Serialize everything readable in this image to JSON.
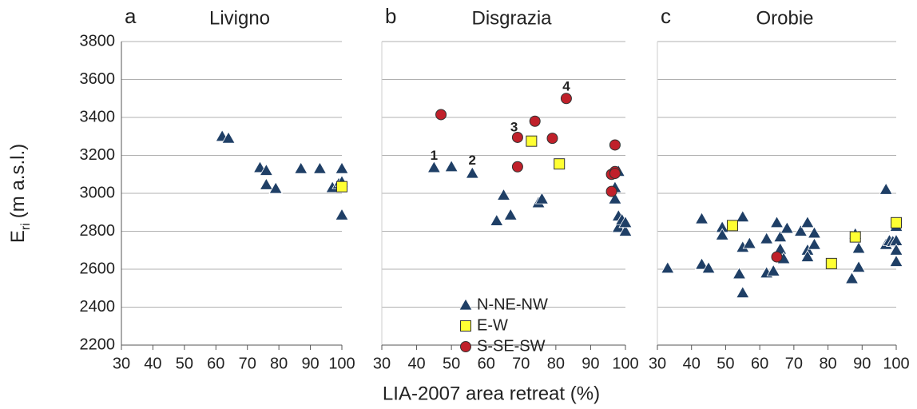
{
  "chart_data": [
    {
      "type": "scatter",
      "letter": "a",
      "title": "Livigno",
      "y_label": "E",
      "y_label_sub": "ri",
      "y_label_unit": "(m a.s.l.)",
      "xlim": [
        30,
        100
      ],
      "xticks": [
        30,
        40,
        50,
        60,
        70,
        80,
        90,
        100
      ],
      "ylim": [
        2200,
        3800
      ],
      "yticks": [
        2200,
        2400,
        2600,
        2800,
        3000,
        3200,
        3400,
        3600,
        3800
      ],
      "ytick_labels": true,
      "grid": true,
      "legend": false,
      "series": [
        {
          "name": "N-NE-NW",
          "marker": "triangle",
          "color": "#1f3f66",
          "x": [
            62,
            64,
            74,
            76,
            76,
            79,
            87,
            93,
            97,
            99,
            100,
            100,
            100
          ],
          "values": [
            3300,
            3290,
            3135,
            3120,
            3045,
            3025,
            3130,
            3130,
            3030,
            3050,
            3130,
            3060,
            2885
          ]
        },
        {
          "name": "E-W",
          "marker": "square",
          "color": "#ffff33",
          "x": [
            100
          ],
          "values": [
            3035
          ]
        }
      ]
    },
    {
      "type": "scatter",
      "letter": "b",
      "title": "Disgrazia",
      "x_label": "LIA-2007 area retreat (%)",
      "xlim": [
        30,
        100
      ],
      "xticks": [
        30,
        40,
        50,
        60,
        70,
        80,
        90,
        100
      ],
      "ylim": [
        2200,
        3800
      ],
      "yticks": [
        2200,
        2400,
        2600,
        2800,
        3000,
        3200,
        3400,
        3600,
        3800
      ],
      "ytick_labels": false,
      "grid": true,
      "legend": true,
      "annotations": [
        {
          "text": "1",
          "x": 45,
          "y": 3195
        },
        {
          "text": "2",
          "x": 56,
          "y": 3170
        },
        {
          "text": "3",
          "x": 68,
          "y": 3345
        },
        {
          "text": "4",
          "x": 83,
          "y": 3560
        }
      ],
      "series": [
        {
          "name": "N-NE-NW",
          "marker": "triangle",
          "color": "#1f3f66",
          "x": [
            45,
            50,
            56,
            63,
            65,
            67,
            75,
            76,
            97,
            97,
            98,
            98,
            99,
            100,
            100,
            98
          ],
          "values": [
            3135,
            3140,
            3105,
            2855,
            2990,
            2885,
            2950,
            2970,
            3030,
            2970,
            2820,
            2880,
            2860,
            2800,
            2845,
            3115
          ]
        },
        {
          "name": "E-W",
          "marker": "square",
          "color": "#ffff33",
          "x": [
            73,
            81
          ],
          "values": [
            3275,
            3155
          ]
        },
        {
          "name": "S-SE-SW",
          "marker": "circle",
          "color": "#c0202a",
          "x": [
            47,
            69,
            69,
            74,
            79,
            83,
            96,
            96,
            97,
            97,
            97
          ],
          "values": [
            3415,
            3295,
            3140,
            3380,
            3290,
            3500,
            3010,
            3100,
            3255,
            3115,
            3105
          ]
        }
      ]
    },
    {
      "type": "scatter",
      "letter": "c",
      "title": "Orobie",
      "xlim": [
        30,
        100
      ],
      "xticks": [
        30,
        40,
        50,
        60,
        70,
        80,
        90,
        100
      ],
      "ylim": [
        2200,
        3800
      ],
      "yticks": [
        2200,
        2400,
        2600,
        2800,
        3000,
        3200,
        3400,
        3600,
        3800
      ],
      "ytick_labels": false,
      "grid": true,
      "legend": false,
      "series": [
        {
          "name": "N-NE-NW",
          "marker": "triangle",
          "color": "#1f3f66",
          "x": [
            33,
            43,
            43,
            45,
            49,
            49,
            54,
            55,
            55,
            55,
            57,
            62,
            62,
            64,
            65,
            66,
            66,
            67,
            68,
            72,
            74,
            74,
            74,
            76,
            76,
            87,
            88,
            89,
            89,
            97,
            97,
            98,
            99,
            100,
            100,
            100,
            100
          ],
          "values": [
            2605,
            2865,
            2625,
            2605,
            2820,
            2780,
            2575,
            2875,
            2475,
            2715,
            2735,
            2760,
            2580,
            2590,
            2845,
            2770,
            2705,
            2655,
            2815,
            2800,
            2845,
            2700,
            2665,
            2790,
            2730,
            2550,
            2785,
            2710,
            2610,
            3020,
            2730,
            2750,
            2745,
            2825,
            2750,
            2700,
            2640
          ]
        },
        {
          "name": "E-W",
          "marker": "square",
          "color": "#ffff33",
          "x": [
            52,
            81,
            88,
            100
          ],
          "values": [
            2830,
            2630,
            2770,
            2845
          ]
        },
        {
          "name": "S-SE-SW",
          "marker": "circle",
          "color": "#c0202a",
          "x": [
            65
          ],
          "values": [
            2665
          ]
        }
      ]
    }
  ]
}
